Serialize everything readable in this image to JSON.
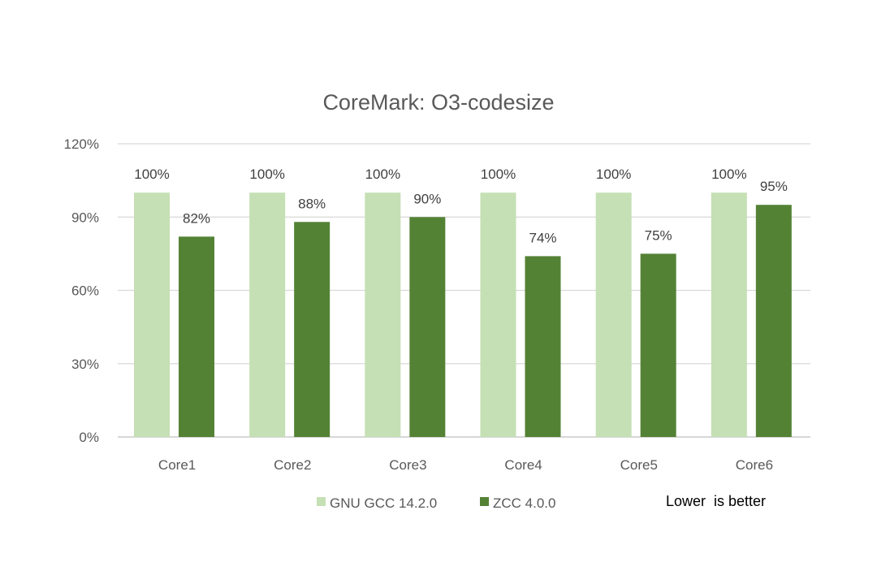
{
  "chart_data": {
    "type": "bar",
    "title": "CoreMark: O3-codesize",
    "xlabel": "",
    "ylabel": "",
    "ylim": [
      0,
      120
    ],
    "yticks": [
      0,
      30,
      60,
      90,
      120
    ],
    "ytick_labels": [
      "0%",
      "30%",
      "60%",
      "90%",
      "120%"
    ],
    "grid": true,
    "categories": [
      "Core1",
      "Core2",
      "Core3",
      "Core4",
      "Core5",
      "Core6"
    ],
    "series": [
      {
        "name": "GNU GCC 14.2.0",
        "color": "#C5E0B4",
        "values": [
          100,
          100,
          100,
          100,
          100,
          100
        ],
        "labels": [
          "100%",
          "100%",
          "100%",
          "100%",
          "100%",
          "100%"
        ]
      },
      {
        "name": "ZCC 4.0.0",
        "color": "#548235",
        "values": [
          82,
          88,
          90,
          74,
          75,
          95
        ],
        "labels": [
          "82%",
          "88%",
          "90%",
          "74%",
          "75%",
          "95%"
        ]
      }
    ],
    "legend_position": "bottom",
    "annotation": "Lower  is better"
  }
}
